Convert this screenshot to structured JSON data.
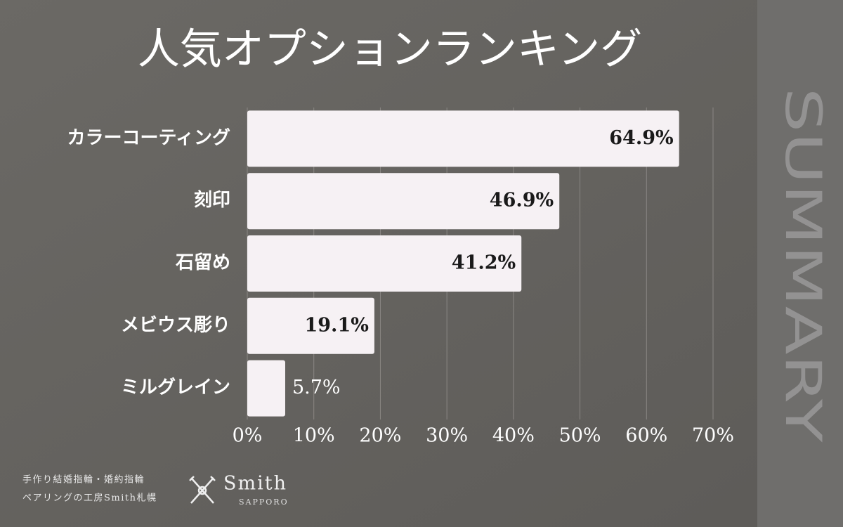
{
  "chart_data": {
    "type": "hbar",
    "title": "人気オプションランキング",
    "categories": [
      "カラーコーティング",
      "刻印",
      "石留め",
      "メビウス彫り",
      "ミルグレイン"
    ],
    "values": [
      64.9,
      46.9,
      41.2,
      19.1,
      5.7
    ],
    "value_labels": [
      "64.9%",
      "46.9%",
      "41.2%",
      "19.1%",
      "5.7%"
    ],
    "color": "#f6f1f4",
    "xlim": [
      0,
      70
    ],
    "xticks": [
      {
        "value": 0,
        "label": "0%"
      },
      {
        "value": 10,
        "label": "10%"
      },
      {
        "value": 20,
        "label": "20%"
      },
      {
        "value": 30,
        "label": "30%"
      },
      {
        "value": 40,
        "label": "40%"
      },
      {
        "value": 50,
        "label": "50%"
      },
      {
        "value": 60,
        "label": "60%"
      },
      {
        "value": 70,
        "label": "70%"
      }
    ],
    "grid": true
  },
  "side_label": "SUMMARY",
  "footer": {
    "lines": [
      "手作り結婚指輪・婚約指輪",
      "ペアリングの工房Smith札幌"
    ],
    "brand": "Smith",
    "brand_sub": "SAPPORO"
  }
}
